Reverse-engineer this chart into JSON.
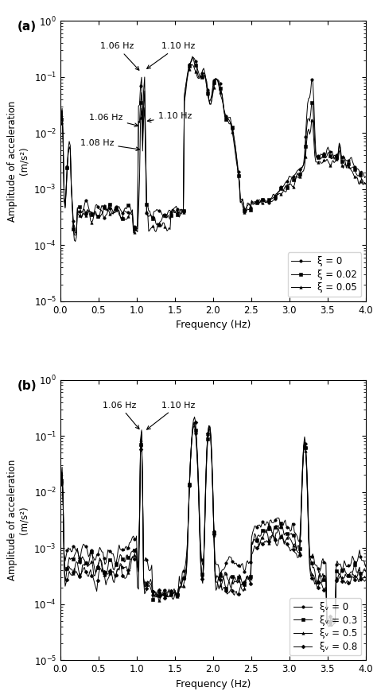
{
  "fig_width": 4.74,
  "fig_height": 8.74,
  "dpi": 100,
  "panel_a": {
    "label": "(a)",
    "xlabel": "Frequency (Hz)",
    "ylabel": "Amplitude of acceleration\n(m/s²)",
    "ylim": [
      1e-05,
      1.0
    ],
    "xlim": [
      0,
      4
    ],
    "legend_labels": [
      "ξ = 0",
      "ξ = 0.02",
      "ξ = 0.05"
    ],
    "legend_loc": "lower right"
  },
  "panel_b": {
    "label": "(b)",
    "xlabel": "Frequency (Hz)",
    "ylabel": "Amplitude of acceleration\n(m/s²)",
    "ylim": [
      1e-05,
      1.0
    ],
    "xlim": [
      0,
      4
    ],
    "legend_labels": [
      "ξᵥ = 0",
      "ξᵥ = 0.3",
      "ξᵥ = 0.5",
      "ξᵥ = 0.8"
    ],
    "legend_loc": "lower right"
  },
  "marker": "o",
  "markersize": 2.5,
  "linewidth": 0.7,
  "color": "black"
}
